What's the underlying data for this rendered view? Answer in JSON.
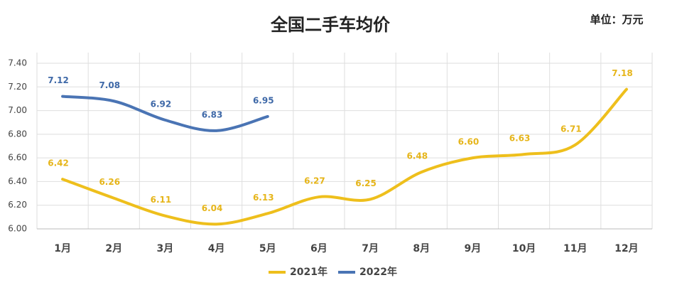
{
  "chart_data": {
    "type": "line",
    "title": "全国二手车均价",
    "unit": "单位：万元",
    "categories": [
      "1月",
      "2月",
      "3月",
      "4月",
      "5月",
      "6月",
      "7月",
      "8月",
      "9月",
      "10月",
      "11月",
      "12月"
    ],
    "series": [
      {
        "name": "2021年",
        "color": "#eebf1c",
        "label_color": "#e6b51a",
        "values": [
          6.42,
          6.26,
          6.11,
          6.04,
          6.13,
          6.27,
          6.25,
          6.48,
          6.6,
          6.63,
          6.71,
          7.18
        ],
        "value_labels": [
          "6.42",
          "6.26",
          "6.11",
          "6.04",
          "6.13",
          "6.27",
          "6.25",
          "6.48",
          "6.60",
          "6.63",
          "6.71",
          "7.18"
        ]
      },
      {
        "name": "2022年",
        "color": "#4a74b4",
        "label_color": "#3f69a8",
        "values": [
          7.12,
          7.08,
          6.92,
          6.83,
          6.95,
          null,
          null,
          null,
          null,
          null,
          null,
          null
        ],
        "value_labels": [
          "7.12",
          "7.08",
          "6.92",
          "6.83",
          "6.95",
          null,
          null,
          null,
          null,
          null,
          null,
          null
        ]
      }
    ],
    "ylim": [
      6.0,
      7.4
    ],
    "yticks": [
      {
        "value": 6.0,
        "label": "6.00"
      },
      {
        "value": 6.2,
        "label": "6.20"
      },
      {
        "value": 6.4,
        "label": "6.40"
      },
      {
        "value": 6.6,
        "label": "6.60"
      },
      {
        "value": 6.8,
        "label": "6.80"
      },
      {
        "value": 7.0,
        "label": "7.00"
      },
      {
        "value": 7.2,
        "label": "7.20"
      },
      {
        "value": 7.4,
        "label": "7.40"
      }
    ],
    "grid": true,
    "legend": "bottom",
    "smooth": true
  }
}
